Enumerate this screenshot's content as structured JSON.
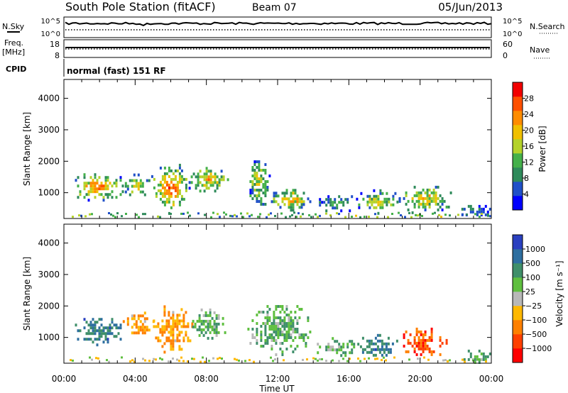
{
  "header": {
    "station": "South Pole Station (fitACF)",
    "beam": "Beam 07",
    "date": "05/Jun/2013"
  },
  "time_axis": {
    "ticks": [
      "00:00",
      "04:00",
      "08:00",
      "12:00",
      "16:00",
      "20:00",
      "00:00"
    ],
    "label": "Time UT",
    "range_hours": [
      0,
      24
    ]
  },
  "nsky_panel": {
    "left_label": "N.Sky",
    "right_label": "N.Search",
    "left_ticks": [
      "10^5",
      "10^0"
    ],
    "right_ticks": [
      "10^5",
      "10^0"
    ]
  },
  "freq_panel": {
    "left_label_line1": "Freq.",
    "left_label_line2": "[MHz]",
    "left_ticks": [
      "18",
      "8"
    ],
    "right_label": "Nave",
    "right_ticks": [
      "60",
      "0"
    ]
  },
  "cpid": {
    "label": "CPID",
    "value": "normal (fast) 151 RF"
  },
  "power_panel": {
    "ylabel": "Slant Range [km]",
    "y_ticks": [
      "1000",
      "2000",
      "3000",
      "4000"
    ],
    "ylim": [
      180,
      4600
    ],
    "colorbar": {
      "label": "Power [dB]",
      "ticks": [
        "4",
        "8",
        "12",
        "16",
        "20",
        "24",
        "28"
      ],
      "range": [
        0,
        32
      ],
      "colors": [
        "#0000ff",
        "#2050c8",
        "#2e8a5a",
        "#44b04a",
        "#b4d22a",
        "#f0c000",
        "#ff8c00",
        "#ff5000",
        "#f20000"
      ]
    }
  },
  "velocity_panel": {
    "ylabel": "Slant Range [km]",
    "y_ticks": [
      "1000",
      "2000",
      "3000",
      "4000"
    ],
    "ylim": [
      180,
      4600
    ],
    "colorbar": {
      "label": "Velocity [m s⁻¹]",
      "ticks": [
        "1000",
        "500",
        "100",
        "25",
        "−25",
        "−100",
        "−500",
        "−1000"
      ],
      "colors": [
        "#2a40c0",
        "#2e6fa0",
        "#3f8f6a",
        "#5fbf3f",
        "#b8b8b8",
        "#ffb800",
        "#ff8000",
        "#ff4000",
        "#ff0000"
      ]
    }
  },
  "chart_data": [
    {
      "type": "heatmap",
      "parameter": "power",
      "x_range": [
        0,
        24
      ],
      "ylim": [
        180,
        4600
      ],
      "echo_regions": [
        {
          "t0": 0.5,
          "t1": 3.3,
          "r0": 700,
          "r1": 1800,
          "peak": 26
        },
        {
          "t0": 3.3,
          "t1": 4.8,
          "r0": 800,
          "r1": 1700,
          "peak": 20
        },
        {
          "t0": 4.9,
          "t1": 7.0,
          "r0": 300,
          "r1": 2100,
          "peak": 27
        },
        {
          "t0": 7.0,
          "t1": 9.2,
          "r0": 900,
          "r1": 2000,
          "peak": 22
        },
        {
          "t0": 10.3,
          "t1": 11.5,
          "r0": 400,
          "r1": 2300,
          "peak": 18
        },
        {
          "t0": 11.5,
          "t1": 13.8,
          "r0": 300,
          "r1": 1300,
          "peak": 22
        },
        {
          "t0": 14.2,
          "t1": 16.2,
          "r0": 300,
          "r1": 1100,
          "peak": 12
        },
        {
          "t0": 16.4,
          "t1": 18.8,
          "r0": 300,
          "r1": 1200,
          "peak": 19
        },
        {
          "t0": 18.8,
          "t1": 21.7,
          "r0": 300,
          "r1": 1400,
          "peak": 21
        },
        {
          "t0": 22.2,
          "t1": 24.0,
          "r0": 200,
          "r1": 700,
          "peak": 10
        }
      ]
    },
    {
      "type": "heatmap",
      "parameter": "velocity",
      "x_range": [
        0,
        24
      ],
      "ylim": [
        180,
        4600
      ],
      "echo_regions": [
        {
          "t0": 0.5,
          "t1": 3.3,
          "r0": 700,
          "r1": 1800,
          "v": 500
        },
        {
          "t0": 3.3,
          "t1": 5.0,
          "r0": 900,
          "r1": 2000,
          "v": -100
        },
        {
          "t0": 5.0,
          "t1": 7.2,
          "r0": 300,
          "r1": 2200,
          "v": -100
        },
        {
          "t0": 7.2,
          "t1": 9.2,
          "r0": 900,
          "r1": 2100,
          "v": 100
        },
        {
          "t0": 10.3,
          "t1": 13.8,
          "r0": 300,
          "r1": 2300,
          "v": 100
        },
        {
          "t0": 14.2,
          "t1": 16.5,
          "r0": 300,
          "r1": 1100,
          "v": 100
        },
        {
          "t0": 16.5,
          "t1": 18.8,
          "r0": 300,
          "r1": 1200,
          "v": 500
        },
        {
          "t0": 18.8,
          "t1": 21.5,
          "r0": 300,
          "r1": 1400,
          "v": -500
        },
        {
          "t0": 22.2,
          "t1": 24.0,
          "r0": 200,
          "r1": 700,
          "v": 100
        }
      ]
    }
  ]
}
